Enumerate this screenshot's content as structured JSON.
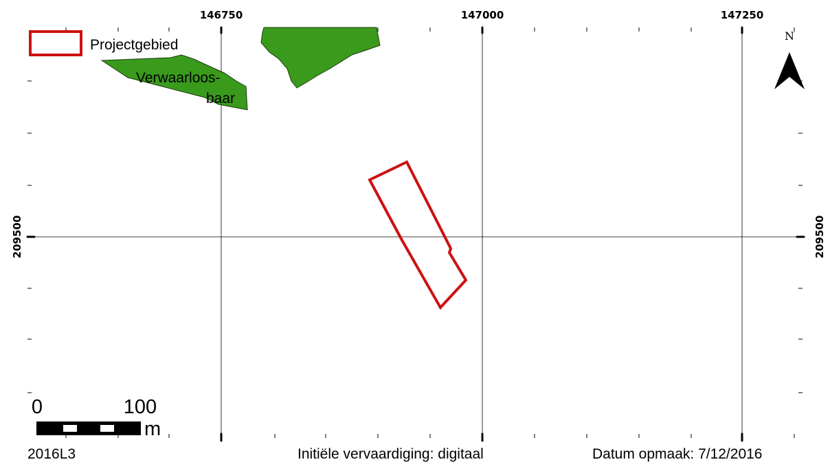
{
  "map": {
    "grid": {
      "x_labels": [
        "146750",
        "147000",
        "147250"
      ],
      "y_labels": [
        "209500"
      ]
    },
    "colors": {
      "project_outline": "#cc1111",
      "vegetation_fill": "#3a9a1c",
      "vegetation_outline": "#1a3a0a",
      "grid_line": "#000000"
    },
    "areas": [
      {
        "type": "vegetation",
        "label_lines": [
          "Verwaarloos-",
          "baar"
        ]
      },
      {
        "type": "vegetation",
        "label_lines": []
      },
      {
        "type": "project"
      }
    ]
  },
  "legend": {
    "items": [
      {
        "label": "Projectgebied",
        "symbol": "red-outline-rectangle"
      }
    ]
  },
  "north_arrow": {
    "label": "N"
  },
  "scale_bar": {
    "start_label": "0",
    "end_label": "100",
    "unit": "m"
  },
  "footer": {
    "map_id": "2016L3",
    "origin": "Initiële vervaardiging: digitaal",
    "date": "Datum opmaak: 7/12/2016"
  }
}
